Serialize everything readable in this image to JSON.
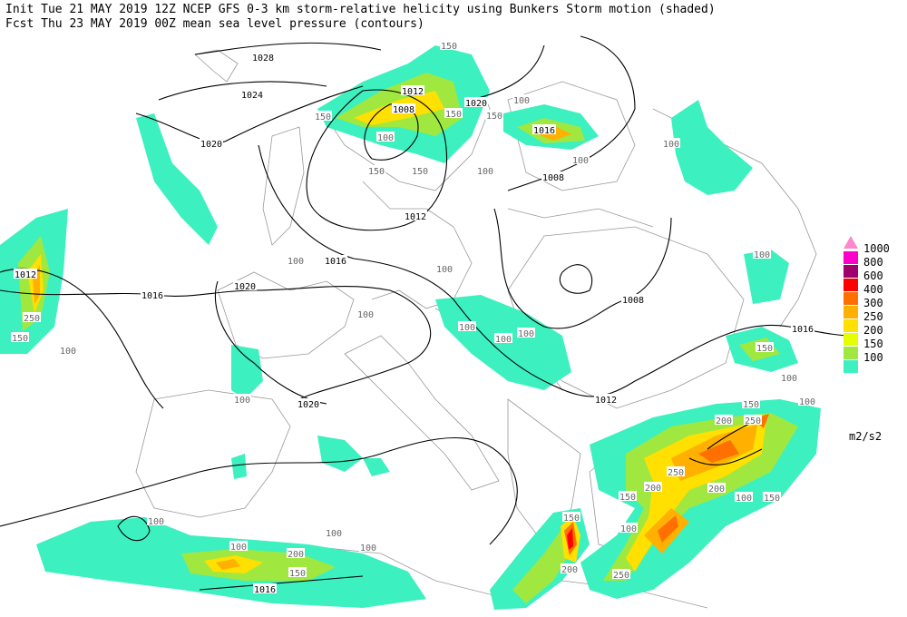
{
  "header": {
    "line1": "Init  Tue 21 MAY 2019 12Z  NCEP GFS 0-3 km storm-relative helicity using Bunkers Storm motion (shaded)",
    "line2": "Fcst Thu 23 MAY 2019 00Z  mean sea level pressure (contours)"
  },
  "legend": {
    "levels": [
      "1000",
      "800",
      "600",
      "400",
      "300",
      "250",
      "200",
      "150",
      "100"
    ],
    "unit": "m2/s2"
  },
  "contour_labels": [
    "1028",
    "1024",
    "1020",
    "1012",
    "1008",
    "1020",
    "1016",
    "1008",
    "1012",
    "1016",
    "1020",
    "1016",
    "1012",
    "1008",
    "1016",
    "1012",
    "1020",
    "1016"
  ],
  "helicity_labels": [
    "250",
    "150",
    "100",
    "100",
    "100",
    "150",
    "100",
    "100",
    "150",
    "200",
    "250",
    "250",
    "200",
    "200",
    "150",
    "100",
    "150",
    "150",
    "200",
    "250",
    "100",
    "100",
    "100",
    "100",
    "100",
    "150",
    "150",
    "100",
    "100",
    "100",
    "150",
    "150",
    "150",
    "100",
    "150",
    "100",
    "100",
    "100",
    "100",
    "100",
    "100",
    "200",
    "150",
    "100"
  ]
}
